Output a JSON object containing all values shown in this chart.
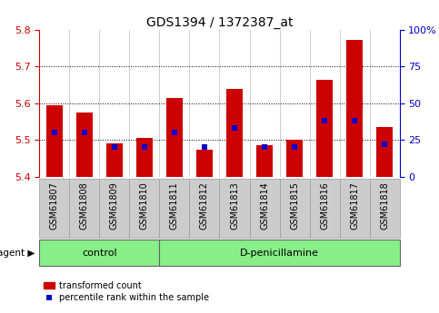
{
  "title": "GDS1394 / 1372387_at",
  "samples": [
    "GSM61807",
    "GSM61808",
    "GSM61809",
    "GSM61810",
    "GSM61811",
    "GSM61812",
    "GSM61813",
    "GSM61814",
    "GSM61815",
    "GSM61816",
    "GSM61817",
    "GSM61818"
  ],
  "bar_values": [
    5.595,
    5.575,
    5.49,
    5.505,
    5.615,
    5.475,
    5.638,
    5.485,
    5.502,
    5.665,
    5.772,
    5.535
  ],
  "percentile_values": [
    30,
    30,
    20,
    20,
    30,
    20,
    33,
    20,
    20,
    38,
    38,
    22
  ],
  "bar_bottom": 5.4,
  "ylim_left": [
    5.4,
    5.8
  ],
  "ylim_right": [
    0,
    100
  ],
  "yticks_left": [
    5.4,
    5.5,
    5.6,
    5.7,
    5.8
  ],
  "yticks_right": [
    0,
    25,
    50,
    75,
    100
  ],
  "ytick_labels_right": [
    "0",
    "25",
    "50",
    "75",
    "100%"
  ],
  "bar_color": "#cc0000",
  "dot_color": "#0000cc",
  "bg_color": "#ffffff",
  "plot_bg": "#ffffff",
  "ctrl_count": 4,
  "treat_count": 8,
  "control_label": "control",
  "treatment_label": "D-penicillamine",
  "agent_label": "agent",
  "legend_bar_label": "transformed count",
  "legend_dot_label": "percentile rank within the sample",
  "group_bg_color": "#88ee88",
  "tick_label_bg": "#cccccc",
  "left_axis_color": "#cc0000",
  "right_axis_color": "#0000cc",
  "title_fontsize": 10,
  "tick_fontsize": 8,
  "label_fontsize": 7,
  "group_fontsize": 8,
  "legend_fontsize": 7
}
